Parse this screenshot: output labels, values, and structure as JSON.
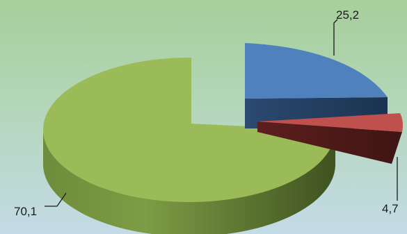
{
  "chart_data": {
    "type": "pie",
    "style": "3d-exploded",
    "categories": [
      "",
      "",
      ""
    ],
    "values": [
      25.2,
      4.7,
      70.1
    ],
    "data_labels": [
      "25,2",
      "4,7",
      "70,1"
    ],
    "colors": [
      "#4f81bd",
      "#c0504d",
      "#9bbb59"
    ],
    "title": "",
    "legend": "none"
  }
}
